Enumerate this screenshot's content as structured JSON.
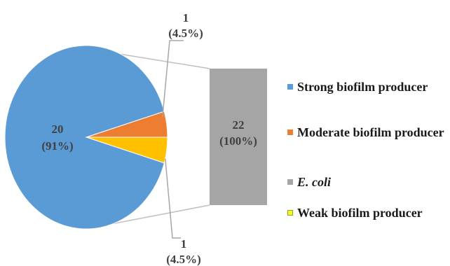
{
  "chart_data": {
    "type": "pie",
    "subtype": "bar-of-pie",
    "slices": [
      {
        "name": "Strong biofilm producer",
        "value": 20,
        "label_top": "20",
        "label_bottom": "(91%)",
        "color": "#5B9BD5"
      },
      {
        "name": "Moderate biofilm producer",
        "value": 1,
        "label_top": "1",
        "label_bottom": "(4.5%)",
        "color": "#ED7D31"
      },
      {
        "name": "Weak biofilm producer",
        "value": 1,
        "label_top": "1",
        "label_bottom": "(4.5%)",
        "color": "#FFC000"
      }
    ],
    "bar": {
      "name": "E. coli",
      "value": 22,
      "label_top": "22",
      "label_bottom": "(100%)",
      "color": "#A5A5A5"
    },
    "legend": [
      {
        "label": "Strong biofilm producer",
        "color": "#5B9BD5",
        "italic": false
      },
      {
        "label": "Moderate biofilm producer",
        "color": "#ED7D31",
        "italic": false
      },
      {
        "label": "E. coli",
        "color": "#A5A5A5",
        "italic": true
      },
      {
        "label": "Weak biofilm producer",
        "color": "#FFFF00",
        "border": "#70AD47",
        "italic": false
      }
    ],
    "legend_position": "right"
  }
}
